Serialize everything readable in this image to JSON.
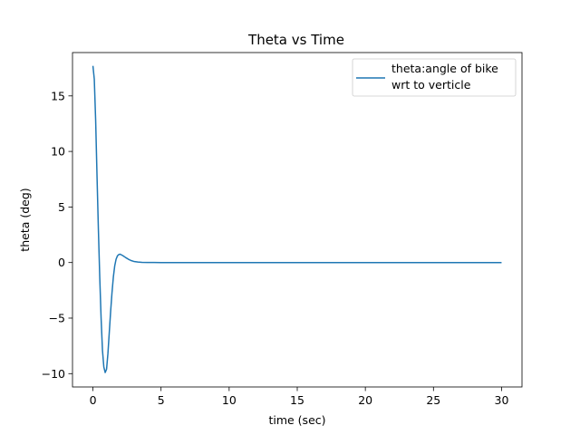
{
  "chart_data": {
    "type": "line",
    "title": "Theta vs Time",
    "xlabel": "time (sec)",
    "ylabel": "theta (deg)",
    "xlim": [
      -1.5,
      31.5
    ],
    "ylim": [
      -11.2,
      18.9
    ],
    "xticks": [
      0,
      5,
      10,
      15,
      20,
      25,
      30
    ],
    "yticks": [
      -10,
      -5,
      0,
      5,
      10,
      15
    ],
    "ytick_labels": [
      "−10",
      "−5",
      "0",
      "5",
      "10",
      "15"
    ],
    "grid": false,
    "legend_position": "top-right",
    "series": [
      {
        "name": "theta:angle of bike wrt to verticle",
        "legend_lines": [
          "theta:angle of bike",
          "wrt to verticle"
        ],
        "color": "#1f77b4",
        "x": [
          0,
          0.1,
          0.2,
          0.3,
          0.4,
          0.5,
          0.6,
          0.7,
          0.8,
          0.9,
          1.0,
          1.1,
          1.2,
          1.3,
          1.4,
          1.5,
          1.6,
          1.7,
          1.8,
          1.9,
          2.0,
          2.2,
          2.4,
          2.6,
          2.8,
          3.0,
          3.3,
          3.6,
          4.0,
          4.5,
          5.0,
          6.0,
          8.0,
          10,
          15,
          20,
          25,
          30
        ],
        "y": [
          17.7,
          16.5,
          12.8,
          7.8,
          3.0,
          -1.3,
          -5.0,
          -7.9,
          -9.4,
          -9.9,
          -9.6,
          -8.2,
          -6.3,
          -4.4,
          -2.7,
          -1.3,
          -0.3,
          0.3,
          0.6,
          0.72,
          0.75,
          0.62,
          0.45,
          0.3,
          0.18,
          0.1,
          0.05,
          0.02,
          0.01,
          0.005,
          0,
          0,
          0,
          0,
          0,
          0,
          0,
          0
        ]
      }
    ]
  }
}
